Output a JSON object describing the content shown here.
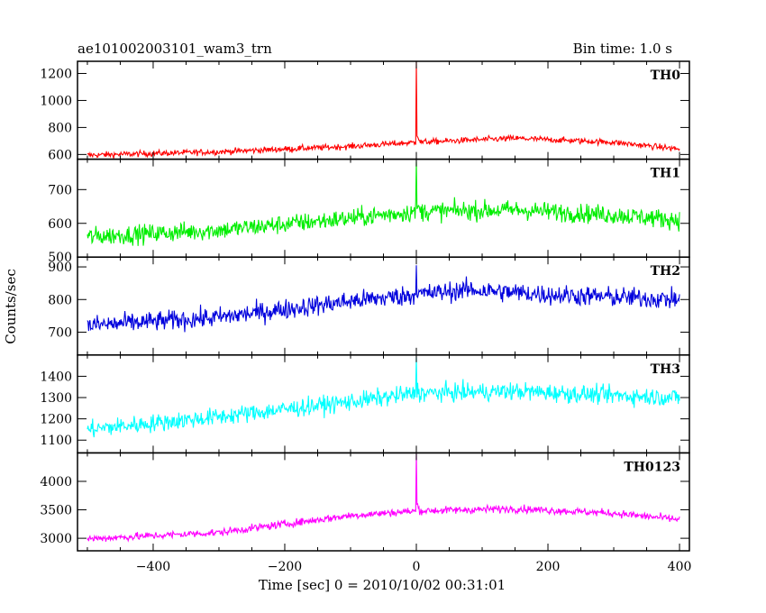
{
  "chart_data": {
    "type": "line",
    "title_left": "ae101002003101_wam3_trn",
    "title_right": "Bin time: 1.0 s",
    "xlabel": "Time [sec] 0 = 2010/10/02 00:31:01",
    "ylabel": "Counts/sec",
    "xlim": [
      -515,
      415
    ],
    "x_ticks": [
      -400,
      -200,
      0,
      200,
      400
    ],
    "x_tick_labels": [
      "−400",
      "−200",
      "0",
      "200",
      "400"
    ],
    "x_range_data": [
      -500,
      400
    ],
    "grid": false,
    "panels": [
      {
        "name": "TH0",
        "color": "#ff0000",
        "ylim": [
          565,
          1290
        ],
        "y_ticks": [
          600,
          800,
          1000,
          1200
        ],
        "trend": [
          [
            -500,
            595
          ],
          [
            -300,
            620
          ],
          [
            -100,
            660
          ],
          [
            0,
            690
          ],
          [
            150,
            720
          ],
          [
            300,
            690
          ],
          [
            400,
            640
          ]
        ],
        "noise_amp": 40,
        "spike": {
          "x": 0,
          "peak": 1290
        }
      },
      {
        "name": "TH1",
        "color": "#00ee00",
        "ylim": [
          500,
          790
        ],
        "y_ticks": [
          500,
          600,
          700
        ],
        "trend": [
          [
            -500,
            560
          ],
          [
            -300,
            580
          ],
          [
            -100,
            615
          ],
          [
            0,
            635
          ],
          [
            150,
            640
          ],
          [
            300,
            625
          ],
          [
            400,
            610
          ]
        ],
        "noise_amp": 50,
        "spike": {
          "x": 0,
          "peak": 785
        }
      },
      {
        "name": "TH2",
        "color": "#0000dd",
        "ylim": [
          630,
          930
        ],
        "y_ticks": [
          700,
          800,
          900
        ],
        "trend": [
          [
            -500,
            720
          ],
          [
            -300,
            745
          ],
          [
            -100,
            795
          ],
          [
            0,
            815
          ],
          [
            80,
            830
          ],
          [
            200,
            815
          ],
          [
            400,
            800
          ]
        ],
        "noise_amp": 55,
        "spike": {
          "x": 0,
          "peak": 905
        }
      },
      {
        "name": "TH3",
        "color": "#00ffff",
        "ylim": [
          1040,
          1500
        ],
        "y_ticks": [
          1100,
          1200,
          1300,
          1400
        ],
        "trend": [
          [
            -500,
            1150
          ],
          [
            -300,
            1210
          ],
          [
            -100,
            1280
          ],
          [
            0,
            1320
          ],
          [
            150,
            1330
          ],
          [
            300,
            1310
          ],
          [
            400,
            1300
          ]
        ],
        "noise_amp": 75,
        "spike": {
          "x": 0,
          "peak": 1490
        }
      },
      {
        "name": "TH0123",
        "color": "#ff00ff",
        "ylim": [
          2780,
          4500
        ],
        "y_ticks": [
          3000,
          3500,
          4000
        ],
        "trend": [
          [
            -500,
            2990
          ],
          [
            -300,
            3100
          ],
          [
            -100,
            3400
          ],
          [
            0,
            3480
          ],
          [
            150,
            3520
          ],
          [
            300,
            3440
          ],
          [
            400,
            3330
          ]
        ],
        "noise_amp": 120,
        "spike": {
          "x": 0,
          "peak": 4490
        }
      }
    ]
  }
}
